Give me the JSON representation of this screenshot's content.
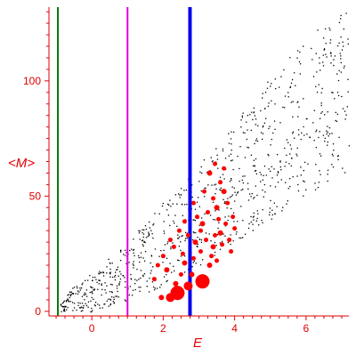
{
  "chart_data": {
    "type": "scatter",
    "title": "",
    "xlabel": "E",
    "ylabel": "<M>",
    "xlim": [
      -1.2,
      7.2
    ],
    "ylim": [
      -2,
      132
    ],
    "xticks": [
      0,
      2,
      4,
      6
    ],
    "yticks": [
      0,
      50,
      100
    ],
    "x_tick_labels": [
      "0",
      "2",
      "4",
      "6"
    ],
    "y_tick_labels": [
      "0",
      "50",
      "100"
    ],
    "grid": false,
    "axis_color": "#e00000",
    "vertical_lines": [
      {
        "x": -0.95,
        "color": "#007a00",
        "width": 2
      },
      {
        "x": 1.0,
        "color": "#e000e0",
        "width": 2
      },
      {
        "x": 2.75,
        "color": "#0000ee",
        "width": 4
      }
    ],
    "background_cloud": {
      "color": "#000000",
      "point_size": 1.3,
      "count": 900,
      "x_range": [
        -0.9,
        7.2
      ],
      "band_lower": [
        [
          -0.9,
          0
        ],
        [
          0,
          0
        ],
        [
          1,
          5
        ],
        [
          2,
          11
        ],
        [
          3,
          20
        ],
        [
          4,
          30
        ],
        [
          5,
          40
        ],
        [
          6,
          50
        ],
        [
          7,
          60
        ]
      ],
      "band_upper": [
        [
          -0.9,
          6
        ],
        [
          0,
          17
        ],
        [
          1,
          30
        ],
        [
          2,
          48
        ],
        [
          3,
          64
        ],
        [
          4,
          82
        ],
        [
          5,
          102
        ],
        [
          6,
          118
        ],
        [
          7,
          132
        ]
      ]
    },
    "series": [
      {
        "color": "#ff0000",
        "points": [
          [
            2.4,
            8,
            8
          ],
          [
            3.1,
            13,
            8
          ],
          [
            2.2,
            6,
            5
          ],
          [
            2.7,
            11,
            5
          ],
          [
            1.95,
            6,
            3
          ],
          [
            2.35,
            12,
            3
          ],
          [
            2.8,
            16,
            3
          ],
          [
            2.1,
            18,
            3
          ],
          [
            3.3,
            20,
            3
          ],
          [
            2.6,
            21,
            3
          ],
          [
            3.4,
            28,
            3
          ],
          [
            2.9,
            30,
            3
          ],
          [
            3.6,
            34,
            3
          ],
          [
            3.1,
            38,
            3
          ],
          [
            3.5,
            45,
            3
          ],
          [
            3.7,
            52,
            3
          ],
          [
            3.3,
            60,
            3
          ],
          [
            2.0,
            24,
            2.5
          ],
          [
            2.3,
            28,
            2.5
          ],
          [
            2.55,
            25,
            2.5
          ],
          [
            2.85,
            23,
            2.5
          ],
          [
            3.05,
            26,
            2.5
          ],
          [
            3.2,
            31,
            2.5
          ],
          [
            3.45,
            33,
            2.5
          ],
          [
            3.65,
            29,
            2.5
          ],
          [
            3.85,
            31,
            2.5
          ],
          [
            3.75,
            38,
            2.5
          ],
          [
            3.95,
            41,
            2.5
          ],
          [
            3.55,
            40,
            2.5
          ],
          [
            3.25,
            43,
            2.5
          ],
          [
            3.4,
            49,
            2.5
          ],
          [
            3.6,
            56,
            2.5
          ],
          [
            3.8,
            47,
            2.5
          ],
          [
            3.05,
            35,
            2.5
          ],
          [
            2.95,
            41,
            2.5
          ],
          [
            2.7,
            33,
            2.5
          ],
          [
            2.45,
            35,
            2.5
          ],
          [
            2.6,
            39,
            2.5
          ],
          [
            2.2,
            31,
            2.5
          ],
          [
            1.85,
            20,
            2.5
          ],
          [
            1.75,
            14,
            2.5
          ],
          [
            2.5,
            16,
            2.5
          ],
          [
            3.35,
            24,
            2.5
          ],
          [
            3.5,
            22,
            2.5
          ],
          [
            3.9,
            26,
            2.5
          ],
          [
            4.0,
            36,
            2.5
          ],
          [
            3.15,
            52,
            2.5
          ],
          [
            3.45,
            64,
            2.5
          ],
          [
            3.7,
            62,
            2.5
          ],
          [
            2.85,
            47,
            2.5
          ]
        ]
      }
    ]
  }
}
